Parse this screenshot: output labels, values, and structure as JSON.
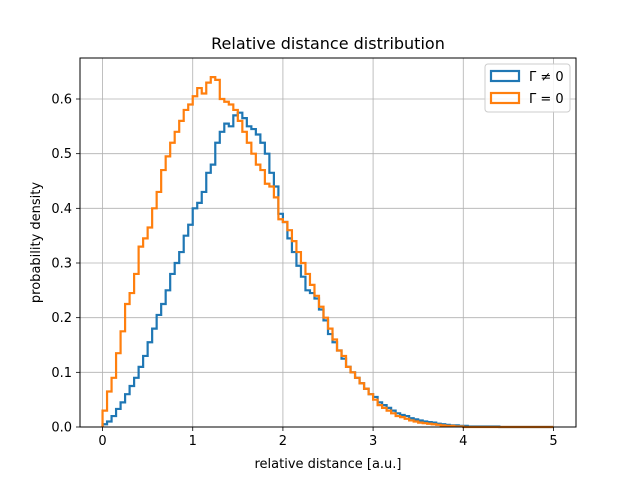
{
  "chart_data": {
    "type": "histogram-step",
    "title": "Relative distance distribution",
    "xlabel": "relative distance [a.u.]",
    "ylabel": "probability density",
    "xlim": [
      -0.25,
      5.25
    ],
    "ylim": [
      0,
      0.675
    ],
    "grid": true,
    "legend_position": "top-right",
    "bin_width": 0.05,
    "x_start": 0.0,
    "xticks": [
      {
        "value": 0,
        "label": "0"
      },
      {
        "value": 1,
        "label": "1"
      },
      {
        "value": 2,
        "label": "2"
      },
      {
        "value": 3,
        "label": "3"
      },
      {
        "value": 4,
        "label": "4"
      },
      {
        "value": 5,
        "label": "5"
      }
    ],
    "yticks": [
      {
        "value": 0.0,
        "label": "0.0"
      },
      {
        "value": 0.1,
        "label": "0.1"
      },
      {
        "value": 0.2,
        "label": "0.2"
      },
      {
        "value": 0.3,
        "label": "0.3"
      },
      {
        "value": 0.4,
        "label": "0.4"
      },
      {
        "value": 0.5,
        "label": "0.5"
      },
      {
        "value": 0.6,
        "label": "0.6"
      }
    ],
    "series": [
      {
        "name": "Γ ≠ 0",
        "color": "#1f77b4",
        "values": [
          0.005,
          0.01,
          0.02,
          0.033,
          0.045,
          0.06,
          0.075,
          0.09,
          0.11,
          0.13,
          0.155,
          0.18,
          0.205,
          0.225,
          0.25,
          0.28,
          0.3,
          0.32,
          0.35,
          0.37,
          0.4,
          0.41,
          0.43,
          0.465,
          0.48,
          0.52,
          0.54,
          0.555,
          0.55,
          0.57,
          0.575,
          0.565,
          0.55,
          0.545,
          0.535,
          0.52,
          0.5,
          0.465,
          0.44,
          0.39,
          0.375,
          0.345,
          0.32,
          0.295,
          0.275,
          0.25,
          0.245,
          0.235,
          0.215,
          0.195,
          0.17,
          0.155,
          0.14,
          0.125,
          0.11,
          0.1,
          0.09,
          0.08,
          0.07,
          0.06,
          0.055,
          0.045,
          0.04,
          0.035,
          0.03,
          0.025,
          0.022,
          0.02,
          0.016,
          0.014,
          0.012,
          0.01,
          0.009,
          0.008,
          0.006,
          0.005,
          0.004,
          0.003,
          0.003,
          0.002,
          0.002,
          0.001,
          0.001,
          0.001,
          0.001,
          0.001,
          0.001,
          0.001,
          0.0,
          0.0,
          0.0,
          0.0,
          0.0,
          0.0,
          0.0,
          0.0,
          0.0,
          0.0,
          0.0,
          0.0
        ]
      },
      {
        "name": "Γ = 0",
        "color": "#ff7f0e",
        "values": [
          0.03,
          0.065,
          0.09,
          0.135,
          0.175,
          0.225,
          0.245,
          0.28,
          0.33,
          0.345,
          0.365,
          0.4,
          0.43,
          0.47,
          0.495,
          0.52,
          0.54,
          0.56,
          0.58,
          0.59,
          0.605,
          0.62,
          0.61,
          0.63,
          0.64,
          0.635,
          0.6,
          0.595,
          0.59,
          0.58,
          0.56,
          0.54,
          0.52,
          0.5,
          0.48,
          0.47,
          0.445,
          0.44,
          0.42,
          0.38,
          0.375,
          0.36,
          0.34,
          0.32,
          0.3,
          0.28,
          0.26,
          0.24,
          0.22,
          0.2,
          0.18,
          0.16,
          0.14,
          0.13,
          0.11,
          0.1,
          0.09,
          0.08,
          0.07,
          0.06,
          0.05,
          0.04,
          0.035,
          0.03,
          0.025,
          0.02,
          0.018,
          0.015,
          0.012,
          0.01,
          0.008,
          0.007,
          0.006,
          0.005,
          0.004,
          0.003,
          0.002,
          0.002,
          0.001,
          0.001,
          0.0,
          0.0,
          0.0,
          0.0,
          0.0,
          0.0,
          0.0,
          0.0,
          0.0,
          0.0,
          0.0,
          0.0,
          0.0,
          0.0,
          0.0,
          0.0,
          0.0,
          0.0,
          0.0,
          0.0
        ]
      }
    ]
  }
}
